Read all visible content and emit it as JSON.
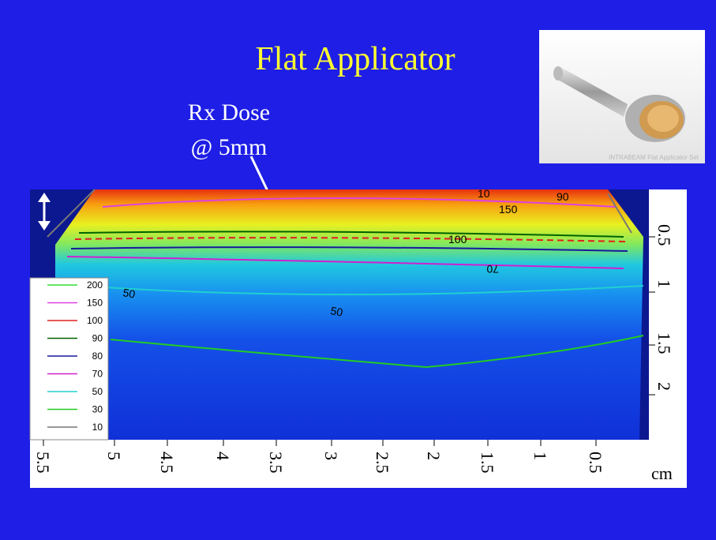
{
  "slide": {
    "title": "Flat Applicator",
    "annotation": {
      "lines": [
        "Rx Dose",
        "@ 5mm"
      ]
    },
    "photo_caption": "INTRABEAM Flat Applicator Set",
    "x_axis": {
      "ticks": [
        "5.5",
        "5",
        "4.5",
        "4",
        "3.5",
        "3",
        "2.5",
        "2",
        "1.5",
        "1",
        "0.5"
      ],
      "unit": "cm"
    },
    "y_axis": {
      "ticks": [
        "0.5",
        "1",
        "1.5",
        "2"
      ]
    },
    "legend": [
      {
        "label": "200",
        "color": "#33dd33"
      },
      {
        "label": "150",
        "color": "#e040e0"
      },
      {
        "label": "100",
        "color": "#e02020"
      },
      {
        "label": "90",
        "color": "#006400"
      },
      {
        "label": "80",
        "color": "#1a1a9a"
      },
      {
        "label": "70",
        "color": "#d020d0"
      },
      {
        "label": "50",
        "color": "#20d0d0"
      },
      {
        "label": "30",
        "color": "#22cc22"
      },
      {
        "label": "10",
        "color": "#777777"
      }
    ],
    "contour_labels": [
      "150",
      "100",
      "70",
      "50",
      "50",
      "10",
      "90"
    ]
  }
}
